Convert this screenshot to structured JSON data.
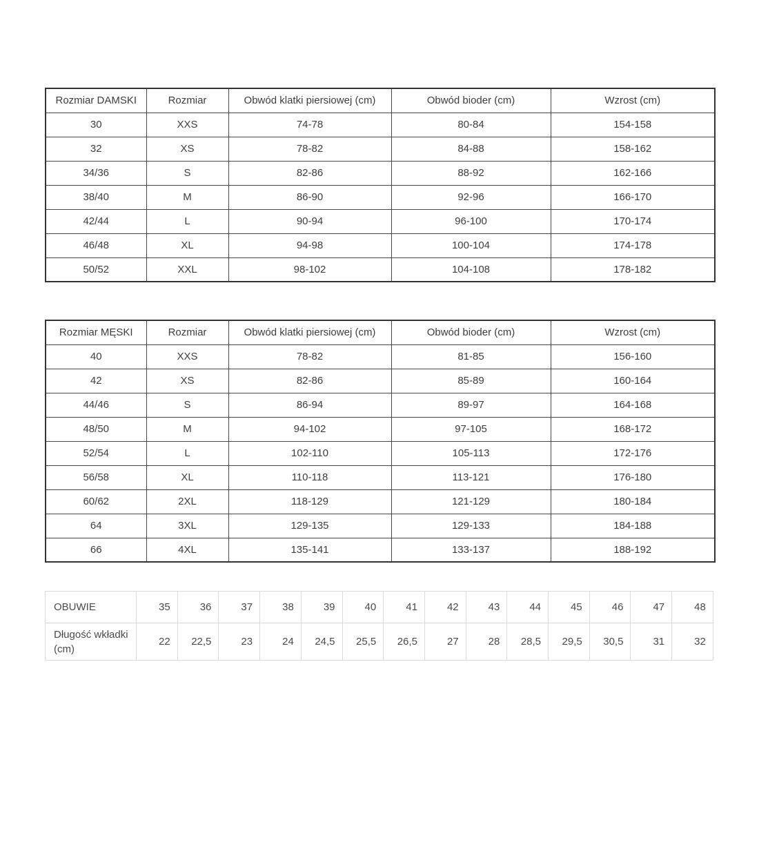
{
  "women_table": {
    "headers": [
      "Rozmiar DAMSKI",
      "Rozmiar",
      "Obwód klatki piersiowej (cm)",
      "Obwód bioder (cm)",
      "Wzrost (cm)"
    ],
    "rows": [
      [
        "30",
        "XXS",
        "74-78",
        "80-84",
        "154-158"
      ],
      [
        "32",
        "XS",
        "78-82",
        "84-88",
        "158-162"
      ],
      [
        "34/36",
        "S",
        "82-86",
        "88-92",
        "162-166"
      ],
      [
        "38/40",
        "M",
        "86-90",
        "92-96",
        "166-170"
      ],
      [
        "42/44",
        "L",
        "90-94",
        "96-100",
        "170-174"
      ],
      [
        "46/48",
        "XL",
        "94-98",
        "100-104",
        "174-178"
      ],
      [
        "50/52",
        "XXL",
        "98-102",
        "104-108",
        "178-182"
      ]
    ]
  },
  "men_table": {
    "headers": [
      "Rozmiar MĘSKI",
      "Rozmiar",
      "Obwód klatki piersiowej (cm)",
      "Obwód bioder (cm)",
      "Wzrost (cm)"
    ],
    "rows": [
      [
        "40",
        "XXS",
        "78-82",
        "81-85",
        "156-160"
      ],
      [
        "42",
        "XS",
        "82-86",
        "85-89",
        "160-164"
      ],
      [
        "44/46",
        "S",
        "86-94",
        "89-97",
        "164-168"
      ],
      [
        "48/50",
        "M",
        "94-102",
        "97-105",
        "168-172"
      ],
      [
        "52/54",
        "L",
        "102-110",
        "105-113",
        "172-176"
      ],
      [
        "56/58",
        "XL",
        "110-118",
        "113-121",
        "176-180"
      ],
      [
        "60/62",
        "2XL",
        "118-129",
        "121-129",
        "180-184"
      ],
      [
        "64",
        "3XL",
        "129-135",
        "129-133",
        "184-188"
      ],
      [
        "66",
        "4XL",
        "135-141",
        "133-137",
        "188-192"
      ]
    ]
  },
  "shoe_table": {
    "sizes_label": "OBUWIE",
    "insole_label": "Długość wkładki (cm)",
    "sizes": [
      "35",
      "36",
      "37",
      "38",
      "39",
      "40",
      "41",
      "42",
      "43",
      "44",
      "45",
      "46",
      "47",
      "48"
    ],
    "insoles": [
      "22",
      "22,5",
      "23",
      "24",
      "24,5",
      "25,5",
      "26,5",
      "27",
      "28",
      "28,5",
      "29,5",
      "30,5",
      "31",
      "32"
    ]
  },
  "colors": {
    "main_table_border": "#333333",
    "main_table_inner_border": "#474747",
    "main_table_text": "#3d3d3d",
    "shoe_table_border": "#d9d9d9",
    "shoe_table_text": "#4a4a4a",
    "background": "#ffffff"
  }
}
